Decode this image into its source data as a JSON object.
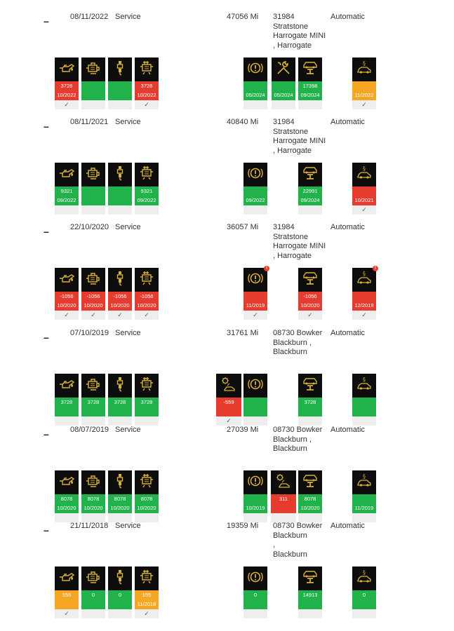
{
  "records": [
    {
      "dash": "–",
      "date": "08/11/2022",
      "type": "Service",
      "miles": "47056 Mi",
      "dealer_lines": [
        "31984",
        "Stratstone",
        "Harrogate MINI",
        ", Harrogate"
      ],
      "transmission": "Automatic",
      "tiles": [
        {
          "icon": "oil-can-icon",
          "color": "red",
          "v1": "3728",
          "v2": "10/2022",
          "check": "✓"
        },
        {
          "icon": "engine-filter-icon",
          "color": "green",
          "v1": "",
          "v2": "",
          "check": ""
        },
        {
          "icon": "spark-plug-icon",
          "color": "green",
          "v1": "",
          "v2": "",
          "check": ""
        },
        {
          "icon": "fuel-filter-icon",
          "color": "red",
          "v1": "3728",
          "v2": "10/2022",
          "check": "✓"
        },
        {
          "icon": "brake-fluid-icon",
          "color": "green",
          "v1": "",
          "v2": "05/2024",
          "check": ""
        },
        {
          "icon": "tools-icon",
          "color": "green",
          "v1": "",
          "v2": "05/2024",
          "check": ""
        },
        {
          "icon": "car-lift-icon",
          "color": "green",
          "v1": "17398",
          "v2": "09/2024",
          "check": ""
        },
        {
          "icon": "inspection-icon",
          "color": "orange",
          "v1": "",
          "v2": "11/2022",
          "check": "✓"
        }
      ]
    },
    {
      "dash": "–",
      "date": "08/11/2021",
      "type": "Service",
      "miles": "40840 Mi",
      "dealer_lines": [
        "31984",
        "Stratstone",
        "Harrogate MINI",
        ", Harrogate"
      ],
      "transmission": "Automatic",
      "tiles": [
        {
          "icon": "oil-can-icon",
          "color": "green",
          "v1": "9321",
          "v2": "09/2022",
          "check": ""
        },
        {
          "icon": "engine-filter-icon",
          "color": "green",
          "v1": "",
          "v2": "",
          "check": ""
        },
        {
          "icon": "spark-plug-icon",
          "color": "green",
          "v1": "",
          "v2": "",
          "check": ""
        },
        {
          "icon": "fuel-filter-icon",
          "color": "green",
          "v1": "9321",
          "v2": "09/2022",
          "check": ""
        },
        {
          "icon": "brake-fluid-icon",
          "color": "green",
          "v1": "",
          "v2": "09/2022",
          "check": ""
        },
        {
          "icon": "car-lift-icon",
          "color": "green",
          "v1": "22991",
          "v2": "09/2024",
          "check": ""
        },
        {
          "icon": "inspection-icon",
          "color": "red",
          "v1": "",
          "v2": "10/2021",
          "check": "✓"
        }
      ]
    },
    {
      "dash": "–",
      "date": "22/10/2020",
      "type": "Service",
      "miles": "36057 Mi",
      "dealer_lines": [
        "31984",
        "Stratstone",
        "Harrogate MINI",
        ", Harrogate"
      ],
      "transmission": "Automatic",
      "tiles": [
        {
          "icon": "oil-can-icon",
          "color": "red",
          "v1": "-1056",
          "v2": "10/2020",
          "check": "✓"
        },
        {
          "icon": "engine-filter-icon",
          "color": "red",
          "v1": "-1056",
          "v2": "10/2020",
          "check": "✓"
        },
        {
          "icon": "spark-plug-icon",
          "color": "red",
          "v1": "-1056",
          "v2": "10/2020",
          "check": "✓"
        },
        {
          "icon": "fuel-filter-icon",
          "color": "red",
          "v1": "-1056",
          "v2": "10/2020",
          "check": "✓"
        },
        {
          "icon": "brake-fluid-icon",
          "color": "red",
          "v1": "",
          "v2": "11/2019",
          "check": "✓",
          "warn": true
        },
        {
          "icon": "car-lift-icon",
          "color": "red",
          "v1": "-1056",
          "v2": "10/2020",
          "check": "✓"
        },
        {
          "icon": "inspection-icon",
          "color": "red",
          "v1": "",
          "v2": "12/2019",
          "check": "✓",
          "warn": true
        }
      ]
    },
    {
      "dash": "–",
      "date": "07/10/2019",
      "type": "Service",
      "miles": "31761 Mi",
      "dealer_lines": [
        "08730 Bowker",
        "Blackburn ,",
        "Blackburn"
      ],
      "transmission": "Automatic",
      "tiles": [
        {
          "icon": "oil-can-icon",
          "color": "green",
          "v1": "3728",
          "v2": "",
          "check": ""
        },
        {
          "icon": "engine-filter-icon",
          "color": "green",
          "v1": "3728",
          "v2": "",
          "check": ""
        },
        {
          "icon": "spark-plug-icon",
          "color": "green",
          "v1": "3728",
          "v2": "",
          "check": ""
        },
        {
          "icon": "fuel-filter-icon",
          "color": "green",
          "v1": "3728",
          "v2": "",
          "check": ""
        },
        {
          "icon": "brake-pad-icon",
          "color": "red",
          "v1": "-559",
          "v2": "",
          "check": "✓"
        },
        {
          "icon": "brake-fluid-icon",
          "color": "green",
          "v1": "",
          "v2": "",
          "check": ""
        },
        {
          "icon": "car-lift-icon",
          "color": "green",
          "v1": "3728",
          "v2": "",
          "check": ""
        },
        {
          "icon": "inspection-icon",
          "color": "green",
          "v1": "",
          "v2": "",
          "check": ""
        }
      ]
    },
    {
      "dash": "–",
      "date": "08/07/2019",
      "type": "Service",
      "miles": "27039 Mi",
      "dealer_lines": [
        "08730 Bowker",
        "Blackburn ,",
        "Blackburn"
      ],
      "transmission": "Automatic",
      "tiles": [
        {
          "icon": "oil-can-icon",
          "color": "green",
          "v1": "8078",
          "v2": "10/2020",
          "check": ""
        },
        {
          "icon": "engine-filter-icon",
          "color": "green",
          "v1": "8078",
          "v2": "10/2020",
          "check": ""
        },
        {
          "icon": "spark-plug-icon",
          "color": "green",
          "v1": "8078",
          "v2": "10/2020",
          "check": ""
        },
        {
          "icon": "fuel-filter-icon",
          "color": "green",
          "v1": "8078",
          "v2": "10/2020",
          "check": ""
        },
        {
          "icon": "brake-fluid-icon",
          "color": "green",
          "v1": "",
          "v2": "10/2019",
          "check": ""
        },
        {
          "icon": "brake-pad-icon",
          "color": "red",
          "v1": "311",
          "v2": "",
          "check": ""
        },
        {
          "icon": "car-lift-icon",
          "color": "green",
          "v1": "8078",
          "v2": "10/2020",
          "check": ""
        },
        {
          "icon": "inspection-icon",
          "color": "green",
          "v1": "",
          "v2": "11/2019",
          "check": ""
        }
      ]
    },
    {
      "dash": "–",
      "date": "21/11/2018",
      "type": "Service",
      "miles": "19359 Mi",
      "dealer_lines": [
        "08730 Bowker",
        "Blackburn",
        ",",
        "Blackburn"
      ],
      "transmission": "Automatic",
      "tiles": [
        {
          "icon": "oil-can-icon",
          "color": "orange",
          "v1": "155",
          "v2": "",
          "check": "✓"
        },
        {
          "icon": "engine-filter-icon",
          "color": "green",
          "v1": "0",
          "v2": "",
          "check": ""
        },
        {
          "icon": "spark-plug-icon",
          "color": "green",
          "v1": "0",
          "v2": "",
          "check": ""
        },
        {
          "icon": "fuel-filter-icon",
          "color": "orange",
          "v1": "155",
          "v2": "11/2018",
          "check": "✓"
        },
        {
          "icon": "brake-fluid-icon",
          "color": "green",
          "v1": "0",
          "v2": "",
          "check": ""
        },
        {
          "icon": "car-lift-icon",
          "color": "green",
          "v1": "14913",
          "v2": "",
          "check": ""
        },
        {
          "icon": "inspection-icon",
          "color": "green",
          "v1": "0",
          "v2": "",
          "check": ""
        }
      ]
    }
  ],
  "colors": {
    "green": "#22b24c",
    "red": "#e63c2f",
    "orange": "#f5a623",
    "icon": "#c9a227",
    "tile_bg": "#0d0d0d"
  }
}
